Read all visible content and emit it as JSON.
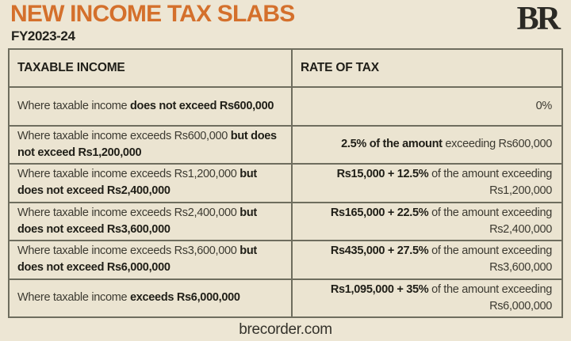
{
  "header": {
    "title": "NEW INCOME TAX SLABS",
    "subtitle": "FY2023-24",
    "logo_text": "BR"
  },
  "footer": {
    "site": "brecorder.com"
  },
  "colors": {
    "background": "#ede6d4",
    "accent_orange": "#d4702c",
    "border": "#6e6d5e",
    "text_dark": "#1f1e18",
    "text_body": "#3c3a31"
  },
  "table": {
    "headers": {
      "income": "TAXABLE INCOME",
      "rate": "RATE OF TAX"
    },
    "rows": [
      {
        "income": [
          {
            "t": "Where taxable income ",
            "b": false
          },
          {
            "t": "does not exceed Rs600,000",
            "b": true
          }
        ],
        "rate": [
          {
            "t": "0%",
            "b": false
          }
        ]
      },
      {
        "income": [
          {
            "t": "Where taxable income exceeds Rs600,000 ",
            "b": false
          },
          {
            "t": "but does not exceed Rs1,200,000",
            "b": true
          }
        ],
        "rate": [
          {
            "t": "2.5% of the amount ",
            "b": true
          },
          {
            "t": "exceeding Rs600,000",
            "b": false
          }
        ]
      },
      {
        "income": [
          {
            "t": "Where taxable income exceeds Rs1,200,000 ",
            "b": false
          },
          {
            "t": "but does not exceed Rs2,400,000",
            "b": true
          }
        ],
        "rate": [
          {
            "t": "Rs15,000 + 12.5% ",
            "b": true
          },
          {
            "t": "of the amount exceeding Rs1,200,000",
            "b": false
          }
        ]
      },
      {
        "income": [
          {
            "t": "Where taxable income exceeds Rs2,400,000 ",
            "b": false
          },
          {
            "t": "but does not exceed Rs3,600,000",
            "b": true
          }
        ],
        "rate": [
          {
            "t": "Rs165,000 + 22.5% ",
            "b": true
          },
          {
            "t": "of the amount exceeding Rs2,400,000",
            "b": false
          }
        ]
      },
      {
        "income": [
          {
            "t": "Where taxable income exceeds Rs3,600,000 ",
            "b": false
          },
          {
            "t": "but does not exceed Rs6,000,000",
            "b": true
          }
        ],
        "rate": [
          {
            "t": "Rs435,000 + 27.5% ",
            "b": true
          },
          {
            "t": "of the amount exceeding Rs3,600,000",
            "b": false
          }
        ]
      },
      {
        "income": [
          {
            "t": "Where taxable income ",
            "b": false
          },
          {
            "t": "exceeds Rs6,000,000",
            "b": true
          }
        ],
        "rate": [
          {
            "t": "Rs1,095,000 + 35% ",
            "b": true
          },
          {
            "t": "of the amount exceeding Rs6,000,000",
            "b": false
          }
        ]
      }
    ]
  },
  "chart_data": {
    "type": "table",
    "title": "NEW INCOME TAX SLABS",
    "subtitle": "FY2023-24",
    "columns": [
      "TAXABLE INCOME",
      "RATE OF TAX"
    ],
    "rows": [
      [
        "Where taxable income does not exceed Rs600,000",
        "0%"
      ],
      [
        "Where taxable income exceeds Rs600,000 but does not exceed Rs1,200,000",
        "2.5% of the amount exceeding Rs600,000"
      ],
      [
        "Where taxable income exceeds Rs1,200,000 but does not exceed Rs2,400,000",
        "Rs15,000 + 12.5% of the amount exceeding Rs1,200,000"
      ],
      [
        "Where taxable income exceeds Rs2,400,000 but does not exceed Rs3,600,000",
        "Rs165,000 + 22.5% of the amount exceeding Rs2,400,000"
      ],
      [
        "Where taxable income exceeds Rs3,600,000 but does not exceed Rs6,000,000",
        "Rs435,000 + 27.5% of the amount exceeding Rs3,600,000"
      ],
      [
        "Where taxable income exceeds Rs6,000,000",
        "Rs1,095,000 + 35% of the amount exceeding Rs6,000,000"
      ]
    ],
    "source": "brecorder.com",
    "layout_hints": {
      "grid": "on",
      "rate_column_alignment": "right"
    }
  }
}
